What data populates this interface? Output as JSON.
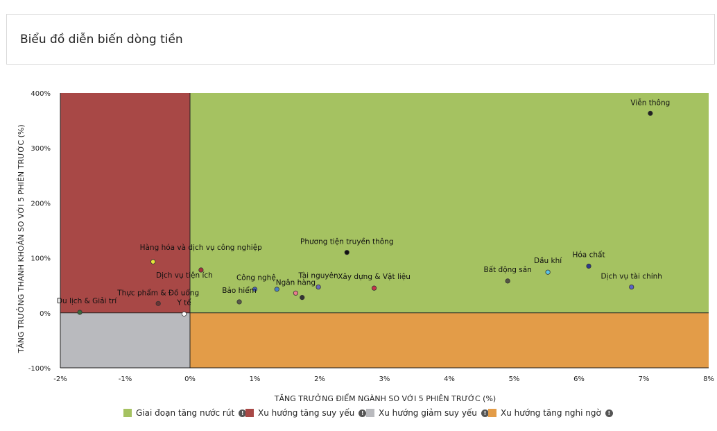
{
  "page": {
    "title": "Biểu đồ diễn biến dòng tiền"
  },
  "chart_data": {
    "type": "scatter",
    "xlabel": "TĂNG TRƯỞNG ĐIỂM NGÀNH SO VỚI 5 PHIÊN TRƯỚC (%)",
    "ylabel": "TĂNG TRƯỞNG THANH KHOẢN SO VỚI 5 PHIÊN TRƯỚC (%)",
    "xlim": [
      -2,
      8
    ],
    "ylim": [
      -100,
      400
    ],
    "x_ticks": [
      -2,
      -1,
      0,
      1,
      2,
      3,
      4,
      5,
      6,
      7,
      8
    ],
    "x_tick_labels": [
      "-2%",
      "-1%",
      "0%",
      "1%",
      "2%",
      "3%",
      "4%",
      "5%",
      "6%",
      "7%",
      "8%"
    ],
    "y_ticks": [
      -100,
      0,
      100,
      200,
      300,
      400
    ],
    "y_tick_labels": [
      "-100%",
      "0%",
      "100%",
      "200%",
      "300%",
      "400%"
    ],
    "quadrants": [
      {
        "name": "Giai đoạn tăng nước rút",
        "color": "#a5c261",
        "region": "x>=0,y>=0"
      },
      {
        "name": "Xu hướng tăng suy yếu",
        "color": "#a84846",
        "region": "x<0,y>=0"
      },
      {
        "name": "Xu hướng giảm suy yếu",
        "color": "#b9babe",
        "region": "x<0,y<0"
      },
      {
        "name": "Xu hướng tăng nghi ngờ",
        "color": "#e39c48",
        "region": "x>=0,y<0"
      }
    ],
    "points": [
      {
        "label": "Viễn thông",
        "x": 7.1,
        "y": 363,
        "color": "#222222"
      },
      {
        "label": "Phương tiện truyền thông",
        "x": 2.42,
        "y": 110,
        "color": "#111111"
      },
      {
        "label": "Hàng hóa và dịch vụ công nghiệp",
        "x": -0.57,
        "y": 93,
        "color": "#e6e63a"
      },
      {
        "label": "Dịch vụ tiện ích",
        "x": 0.17,
        "y": 78,
        "color": "#a8323a"
      },
      {
        "label": "Bất động sản",
        "x": 4.9,
        "y": 58,
        "color": "#555544"
      },
      {
        "label": "Dầu khí",
        "x": 5.52,
        "y": 74,
        "color": "#5bc6e8"
      },
      {
        "label": "Hóa chất",
        "x": 6.15,
        "y": 85,
        "color": "#2d3a8c"
      },
      {
        "label": "Dịch vụ tài chính",
        "x": 6.81,
        "y": 47,
        "color": "#5a62c8"
      },
      {
        "label": "Xây dựng & Vật liệu",
        "x": 2.84,
        "y": 45,
        "color": "#c4344c"
      },
      {
        "label": "Tài nguyên",
        "x": 1.98,
        "y": 47,
        "color": "#6a6ab8"
      },
      {
        "label": "Công nghệ",
        "x": 1.0,
        "y": 43,
        "color": "#4a68c0"
      },
      {
        "label": "Công nghệ",
        "x": 1.34,
        "y": 43,
        "color": "#4a80c4"
      },
      {
        "label": "Ngân hàng",
        "x": 1.63,
        "y": 36,
        "color": "#e87c8c"
      },
      {
        "label": "Ngân hàng",
        "x": 1.73,
        "y": 28,
        "color": "#333333"
      },
      {
        "label": "Bảo hiểm",
        "x": 0.76,
        "y": 20,
        "color": "#5a5a4a"
      },
      {
        "label": "Thực phẩm & Đồ uống",
        "x": -0.49,
        "y": 17,
        "color": "#6a3434"
      },
      {
        "label": "Du lịch & Giải trí",
        "x": -1.7,
        "y": 1,
        "color": "#3c6a3c"
      },
      {
        "label": "Y tế",
        "x": -0.09,
        "y": -2,
        "color": "#ffffff"
      }
    ],
    "legend": [
      {
        "label": "Giai đoạn tăng nước rút",
        "color": "#a5c261"
      },
      {
        "label": "Xu hướng tăng suy yếu",
        "color": "#a84846"
      },
      {
        "label": "Xu hướng giảm suy yếu",
        "color": "#b9babe"
      },
      {
        "label": "Xu hướng tăng nghi ngờ",
        "color": "#e39c48"
      }
    ],
    "legend_info_icon": "info-icon"
  }
}
